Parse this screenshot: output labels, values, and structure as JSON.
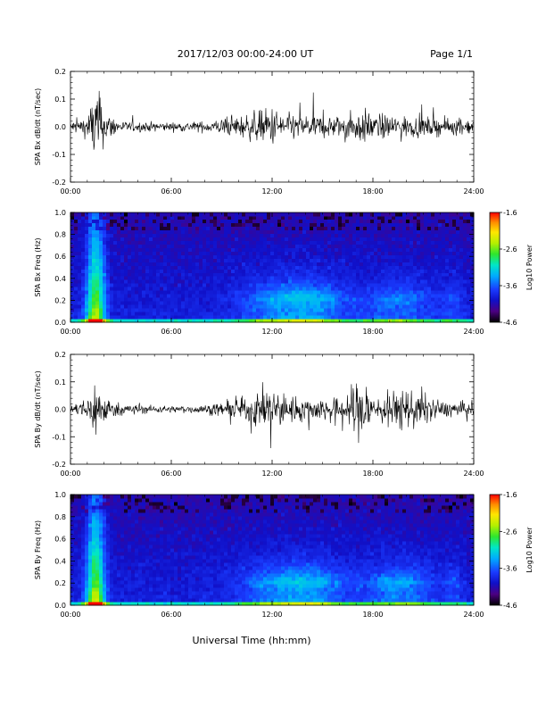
{
  "header": {
    "title": "2017/12/03  00:00-24:00 UT",
    "page": "Page 1/1"
  },
  "footer": {
    "xlabel": "Universal Time (hh:mm)"
  },
  "colors": {
    "trace": "#000000",
    "colormap": [
      "#000000",
      "#4b0082",
      "#1010c8",
      "#1a3cff",
      "#00aaff",
      "#00e6c8",
      "#2ee62e",
      "#b4f000",
      "#ffe600",
      "#ff8c00",
      "#ff0000"
    ]
  },
  "chart_data": [
    {
      "type": "line",
      "ylabel": "SPA Bx dB/dt (nT/sec)",
      "xlim": [
        0,
        24
      ],
      "ylim": [
        -0.2,
        0.2
      ],
      "xticks": [
        "00:00",
        "06:00",
        "12:00",
        "18:00",
        "24:00"
      ],
      "yticks": [
        "0.2",
        "0.1",
        "0.0",
        "-0.1",
        "-0.2"
      ],
      "amplitude_envelope": {
        "hours": [
          0,
          1,
          1.5,
          2,
          3,
          6,
          8,
          10,
          12,
          13,
          16,
          17.5,
          18,
          20,
          22,
          24
        ],
        "half_range": [
          0.025,
          0.05,
          0.2,
          0.08,
          0.025,
          0.02,
          0.025,
          0.05,
          0.09,
          0.06,
          0.05,
          0.08,
          0.06,
          0.05,
          0.04,
          0.035
        ]
      }
    },
    {
      "type": "heatmap",
      "ylabel": "SPA Bx Freq (Hz)",
      "xlim": [
        0,
        24
      ],
      "ylim": [
        0,
        1
      ],
      "xticks": [
        "00:00",
        "06:00",
        "12:00",
        "18:00",
        "24:00"
      ],
      "yticks": [
        "1.0",
        "0.8",
        "0.6",
        "0.4",
        "0.2",
        "0.0"
      ],
      "colorbar": {
        "label": "Log10 Power",
        "range": [
          -4.6,
          -1.6
        ],
        "ticks": [
          "-1.6",
          "-2.6",
          "-3.6",
          "-4.6"
        ]
      }
    },
    {
      "type": "line",
      "ylabel": "SPA By dB/dt (nT/sec)",
      "xlim": [
        0,
        24
      ],
      "ylim": [
        -0.2,
        0.2
      ],
      "xticks": [
        "00:00",
        "06:00",
        "12:00",
        "18:00",
        "24:00"
      ],
      "yticks": [
        "0.2",
        "0.1",
        "0.0",
        "-0.1",
        "-0.2"
      ],
      "amplitude_envelope": {
        "hours": [
          0,
          1,
          1.5,
          2,
          3,
          6,
          8,
          10,
          12,
          13,
          16,
          17.5,
          18,
          20,
          22,
          24
        ],
        "half_range": [
          0.02,
          0.05,
          0.15,
          0.06,
          0.025,
          0.015,
          0.02,
          0.045,
          0.11,
          0.06,
          0.05,
          0.17,
          0.06,
          0.1,
          0.04,
          0.03
        ]
      }
    },
    {
      "type": "heatmap",
      "ylabel": "SPA By Freq (Hz)",
      "xlim": [
        0,
        24
      ],
      "ylim": [
        0,
        1
      ],
      "xticks": [
        "00:00",
        "06:00",
        "12:00",
        "18:00",
        "24:00"
      ],
      "yticks": [
        "1.0",
        "0.8",
        "0.6",
        "0.4",
        "0.2",
        "0.0"
      ],
      "colorbar": {
        "label": "Log10 Power",
        "range": [
          -4.6,
          -1.6
        ],
        "ticks": [
          "-1.6",
          "-2.6",
          "-3.6",
          "-4.6"
        ]
      }
    }
  ]
}
